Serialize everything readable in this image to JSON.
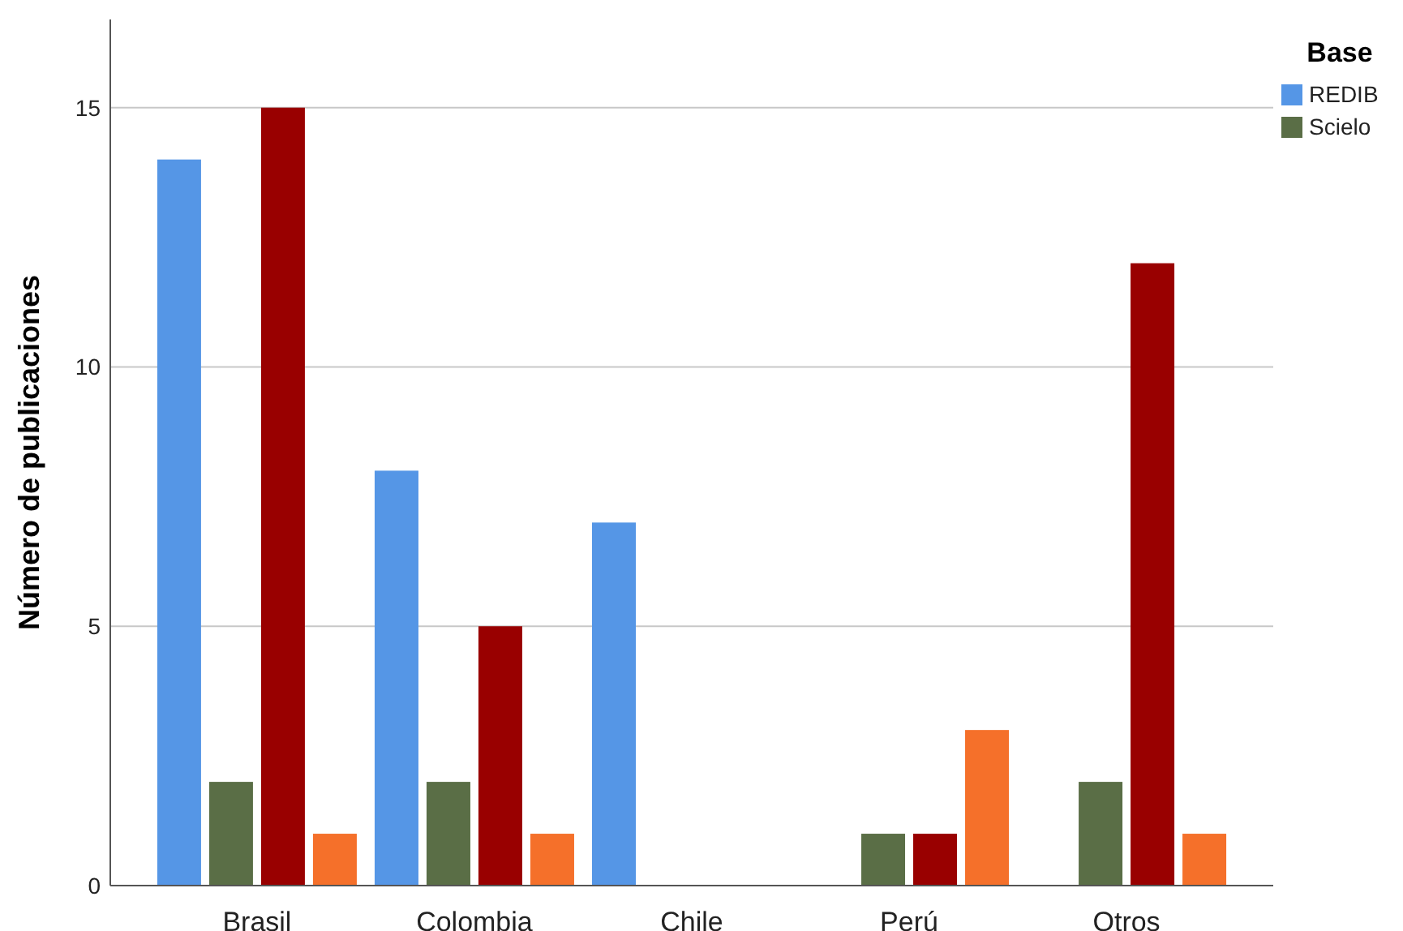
{
  "chart_data": {
    "type": "bar",
    "ylabel": "Número de publicaciones",
    "legend_title": "Base",
    "categories": [
      "Brasil",
      "Colombia",
      "Chile",
      "Perú",
      "Otros"
    ],
    "series": [
      {
        "name": "REDIB",
        "color": "#5596e6",
        "values": [
          14,
          8,
          7,
          0,
          0
        ]
      },
      {
        "name": "Scielo",
        "color": "#5a6e46",
        "values": [
          2,
          2,
          0,
          1,
          2
        ]
      },
      {
        "color": "#990000",
        "values": [
          15,
          5,
          0,
          1,
          12
        ]
      },
      {
        "color": "#f5702a",
        "values": [
          1,
          1,
          0,
          3,
          1
        ]
      }
    ],
    "ylim": [
      0,
      16.7
    ],
    "yticks": [
      0,
      5,
      10,
      15
    ],
    "grid": "y",
    "legend": "top right"
  }
}
